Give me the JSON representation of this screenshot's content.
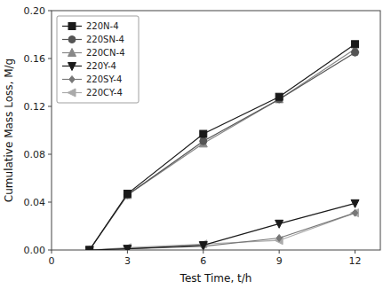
{
  "chart_data": {
    "type": "line",
    "x_label": "Test Time, t/h",
    "y_label": "Cumulative Mass Loss, M/g",
    "x": [
      1.5,
      3,
      6,
      9,
      12
    ],
    "series": [
      {
        "name": "220N-4",
        "color": "#1a1a1a",
        "marker": "square",
        "values": [
          0.0,
          0.047,
          0.097,
          0.128,
          0.172
        ]
      },
      {
        "name": "220SN-4",
        "color": "#555555",
        "marker": "circle",
        "values": [
          0.0,
          0.046,
          0.091,
          0.126,
          0.165
        ]
      },
      {
        "name": "220CN-4",
        "color": "#888888",
        "marker": "triangle-up",
        "values": [
          0.0,
          0.046,
          0.089,
          0.126,
          0.168
        ]
      },
      {
        "name": "220Y-4",
        "color": "#1a1a1a",
        "marker": "triangle-down",
        "values": [
          0.0,
          0.001,
          0.004,
          0.022,
          0.039
        ]
      },
      {
        "name": "220SY-4",
        "color": "#777777",
        "marker": "diamond",
        "values": [
          0.0,
          0.001,
          0.003,
          0.01,
          0.031
        ]
      },
      {
        "name": "220CY-4",
        "color": "#aaaaaa",
        "marker": "triangle-left",
        "values": [
          0.0,
          0.002,
          0.005,
          0.008,
          0.031
        ]
      }
    ],
    "xlim": [
      0,
      13
    ],
    "ylim": [
      0,
      0.2
    ],
    "xticks": [
      0,
      3,
      6,
      9,
      12
    ],
    "yticks": [
      {
        "value": 0.0,
        "label": "0.00"
      },
      {
        "value": 0.04,
        "label": "0.04"
      },
      {
        "value": 0.08,
        "label": "0.08"
      },
      {
        "value": 0.12,
        "label": "0.12"
      },
      {
        "value": 0.16,
        "label": "0.16"
      },
      {
        "value": 0.2,
        "label": "0.20"
      }
    ],
    "grid": false,
    "legend": "upper left"
  }
}
